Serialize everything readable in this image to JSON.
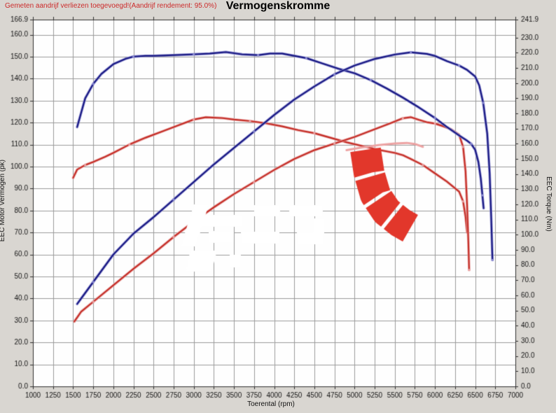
{
  "header": {
    "note": "Gemeten aandrijf verliezen toegevoegd!(Aandrijf rendement: 95.0%)",
    "title": "Vermogenskromme"
  },
  "axes": {
    "x": {
      "label": "Toerental (rpm)",
      "min": 1000,
      "max": 7000,
      "tick_step": 250,
      "tick_labels": [
        "1000",
        "1250",
        "1500",
        "1750",
        "2000",
        "2250",
        "2500",
        "2750",
        "3000",
        "3250",
        "3500",
        "3750",
        "4000",
        "4250",
        "4500",
        "4750",
        "5000",
        "5250",
        "5500",
        "5750",
        "6000",
        "6250",
        "6500",
        "6750",
        "7000"
      ]
    },
    "y_left": {
      "label": "EEC Motor Vermogen (pk)",
      "min": 0,
      "max": 166.9,
      "tick_values": [
        166.9,
        160,
        150,
        140,
        130,
        120,
        110,
        100,
        90,
        80,
        70,
        60,
        50,
        40,
        30,
        20,
        10,
        0
      ],
      "tick_labels": [
        "166.9",
        "160.0",
        "150.0",
        "140.0",
        "130.0",
        "120.0",
        "110.0",
        "100.0",
        "90.0",
        "80.0",
        "70.0",
        "60.0",
        "50.0",
        "40.0",
        "30.0",
        "20.0",
        "10.0",
        "0.0"
      ]
    },
    "y_right": {
      "label": "EEC Torque (Nm)",
      "min": 0,
      "max": 241.9,
      "tick_values": [
        241.9,
        230,
        220,
        210,
        200,
        190,
        180,
        170,
        160,
        150,
        140,
        130,
        120,
        110,
        100,
        90,
        80,
        70,
        60,
        50,
        40,
        30,
        20,
        10,
        0
      ],
      "tick_labels": [
        "241.9",
        "230.0",
        "220.0",
        "210.0",
        "200.0",
        "190.0",
        "180.0",
        "170.0",
        "160.0",
        "150.0",
        "140.0",
        "130.0",
        "120.0",
        "110.0",
        "100.0",
        "90.0",
        "80.0",
        "70.0",
        "60.0",
        "50.0",
        "40.0",
        "30.0",
        "20.0",
        "10.0",
        "0.0"
      ]
    }
  },
  "colors": {
    "tuned": "#12127d",
    "tuned_halo": "#8a8ad0",
    "original": "#c22820",
    "original_halo": "#e8a0a0",
    "raw_pink": "#eda3a3",
    "logo_red": "#e2372b",
    "grid": "#9a9a9a",
    "border": "#2f2f2f",
    "panel_bg": "#d9d6d1",
    "plot_bg": "#fefefe",
    "note_red": "#cc2a2a"
  },
  "chart_data": {
    "type": "line",
    "title": "Vermogenskromme",
    "xlabel": "Toerental (rpm)",
    "ylabel_left": "EEC Motor Vermogen (pk)",
    "ylabel_right": "EEC Torque (Nm)",
    "x_range": [
      1000,
      7000
    ],
    "y_left_range": [
      0,
      166.9
    ],
    "y_right_range": [
      0,
      241.9
    ],
    "grid": true,
    "legend": "none",
    "series": [
      {
        "name": "original-torque",
        "axis": "right",
        "unit": "Nm",
        "color": "#c22820",
        "points": [
          [
            1500,
            137.5
          ],
          [
            1550,
            143
          ],
          [
            1650,
            146
          ],
          [
            1750,
            148
          ],
          [
            1900,
            151.5
          ],
          [
            2000,
            154
          ],
          [
            2200,
            159.5
          ],
          [
            2400,
            164
          ],
          [
            2600,
            168
          ],
          [
            2800,
            172
          ],
          [
            3000,
            176
          ],
          [
            3150,
            177.5
          ],
          [
            3350,
            177
          ],
          [
            3500,
            176
          ],
          [
            3700,
            175
          ],
          [
            3900,
            173.5
          ],
          [
            4100,
            171.5
          ],
          [
            4300,
            169
          ],
          [
            4500,
            167
          ],
          [
            4700,
            164
          ],
          [
            4900,
            161
          ],
          [
            5100,
            158.5
          ],
          [
            5300,
            156
          ],
          [
            5500,
            154
          ],
          [
            5600,
            152.5
          ],
          [
            5700,
            150
          ],
          [
            5850,
            146
          ],
          [
            6000,
            140.5
          ],
          [
            6150,
            135
          ],
          [
            6300,
            128.5
          ],
          [
            6350,
            122
          ],
          [
            6380,
            112
          ],
          [
            6400,
            101.5
          ]
        ]
      },
      {
        "name": "original-power",
        "axis": "left",
        "unit": "pk",
        "color": "#c22820",
        "points": [
          [
            1515,
            29.5
          ],
          [
            1600,
            34
          ],
          [
            1750,
            38.5
          ],
          [
            2000,
            46
          ],
          [
            2250,
            53.5
          ],
          [
            2500,
            60.5
          ],
          [
            2750,
            68
          ],
          [
            3000,
            75
          ],
          [
            3250,
            81.5
          ],
          [
            3500,
            87.5
          ],
          [
            3750,
            93
          ],
          [
            4000,
            98.5
          ],
          [
            4250,
            103.5
          ],
          [
            4500,
            107.5
          ],
          [
            4750,
            110.5
          ],
          [
            5000,
            113.5
          ],
          [
            5250,
            117
          ],
          [
            5450,
            119.8
          ],
          [
            5600,
            122
          ],
          [
            5700,
            122.5
          ],
          [
            5800,
            121.3
          ],
          [
            5900,
            120.2
          ],
          [
            6000,
            119.6
          ],
          [
            6100,
            118.4
          ],
          [
            6200,
            117
          ],
          [
            6300,
            114.5
          ],
          [
            6350,
            109
          ],
          [
            6380,
            98
          ],
          [
            6400,
            82
          ],
          [
            6415,
            66
          ],
          [
            6425,
            53
          ]
        ]
      },
      {
        "name": "original-power-raw",
        "axis": "left",
        "unit": "pk",
        "color": "#eda3a3",
        "points": [
          [
            4900,
            107.5
          ],
          [
            5100,
            108.8
          ],
          [
            5300,
            109.8
          ],
          [
            5500,
            110.5
          ],
          [
            5650,
            110.8
          ],
          [
            5750,
            110.3
          ],
          [
            5850,
            109
          ]
        ]
      },
      {
        "name": "tuned-torque",
        "axis": "right",
        "unit": "Nm",
        "color": "#12127d",
        "points": [
          [
            1550,
            171
          ],
          [
            1650,
            190
          ],
          [
            1750,
            199.5
          ],
          [
            1850,
            206
          ],
          [
            2000,
            212.5
          ],
          [
            2150,
            216
          ],
          [
            2250,
            217.5
          ],
          [
            2400,
            218
          ],
          [
            2500,
            218
          ],
          [
            2750,
            218.5
          ],
          [
            3000,
            219
          ],
          [
            3200,
            219.5
          ],
          [
            3400,
            220.5
          ],
          [
            3600,
            219
          ],
          [
            3800,
            218.5
          ],
          [
            3950,
            219.5
          ],
          [
            4100,
            219.5
          ],
          [
            4250,
            218
          ],
          [
            4400,
            216.5
          ],
          [
            4600,
            213
          ],
          [
            4800,
            209.5
          ],
          [
            5000,
            206.5
          ],
          [
            5200,
            202
          ],
          [
            5400,
            196.5
          ],
          [
            5600,
            190.5
          ],
          [
            5800,
            184
          ],
          [
            6000,
            177
          ],
          [
            6150,
            171
          ],
          [
            6300,
            165.5
          ],
          [
            6400,
            162
          ],
          [
            6450,
            160
          ],
          [
            6500,
            156
          ],
          [
            6540,
            148
          ],
          [
            6570,
            137
          ],
          [
            6590,
            126
          ],
          [
            6605,
            117.5
          ]
        ]
      },
      {
        "name": "tuned-power",
        "axis": "left",
        "unit": "pk",
        "color": "#12127d",
        "points": [
          [
            1550,
            37.5
          ],
          [
            1600,
            40
          ],
          [
            1750,
            47.5
          ],
          [
            2000,
            60
          ],
          [
            2250,
            69.5
          ],
          [
            2500,
            77
          ],
          [
            2750,
            85
          ],
          [
            3000,
            93
          ],
          [
            3250,
            101
          ],
          [
            3500,
            108.5
          ],
          [
            3750,
            116
          ],
          [
            4000,
            123.5
          ],
          [
            4250,
            130.5
          ],
          [
            4500,
            136.5
          ],
          [
            4750,
            142
          ],
          [
            5000,
            146
          ],
          [
            5250,
            149
          ],
          [
            5500,
            151
          ],
          [
            5700,
            152
          ],
          [
            5900,
            151.3
          ],
          [
            6000,
            150.4
          ],
          [
            6150,
            148
          ],
          [
            6300,
            146
          ],
          [
            6400,
            144
          ],
          [
            6500,
            141
          ],
          [
            6550,
            137
          ],
          [
            6600,
            129
          ],
          [
            6650,
            115
          ],
          [
            6680,
            97
          ],
          [
            6700,
            76
          ],
          [
            6715,
            57.5
          ]
        ]
      }
    ]
  },
  "watermarks": {
    "logo": "red-gauge-arc-logo",
    "text_blobs": "white-illegible-watermark"
  }
}
